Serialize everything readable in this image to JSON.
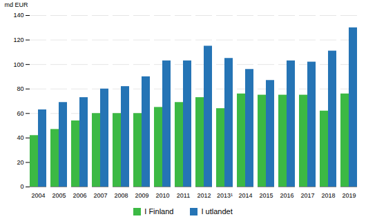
{
  "chart_data": {
    "type": "bar",
    "categories": [
      "2004",
      "2005",
      "2006",
      "2007",
      "2008",
      "2009",
      "2010",
      "2011",
      "2012",
      "2013¹",
      "2014",
      "2015",
      "2016",
      "2017",
      "2018",
      "2019"
    ],
    "series": [
      {
        "name": "I Finland",
        "color": "#3cb944",
        "values": [
          42,
          47,
          54,
          60,
          60,
          60,
          65,
          69,
          73,
          64,
          76,
          75,
          75,
          75,
          62,
          76
        ]
      },
      {
        "name": "I utlandet",
        "color": "#2574b5",
        "values": [
          63,
          69,
          73,
          80,
          82,
          90,
          103,
          103,
          115,
          105,
          96,
          87,
          103,
          102,
          111,
          130
        ]
      }
    ],
    "ylabel": "md EUR",
    "ylim": [
      0,
      140
    ],
    "yticks": [
      0,
      20,
      40,
      60,
      80,
      100,
      120,
      140
    ],
    "grid": true,
    "legend": "bottom"
  }
}
